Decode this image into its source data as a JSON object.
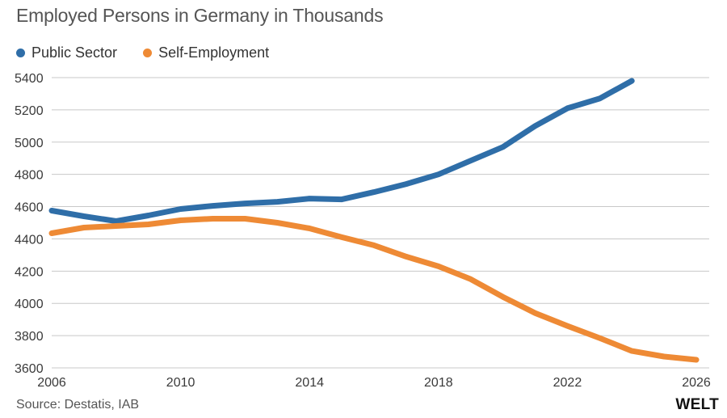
{
  "chart_data": {
    "type": "line",
    "title": "Employed Persons in Germany in Thousands",
    "xlabel": "",
    "ylabel": "",
    "x": [
      2006,
      2007,
      2008,
      2009,
      2010,
      2011,
      2012,
      2013,
      2014,
      2015,
      2016,
      2017,
      2018,
      2019,
      2020,
      2021,
      2022,
      2023,
      2024,
      2025,
      2026
    ],
    "xlim": [
      2006,
      2026.4
    ],
    "ylim": [
      3600,
      5400
    ],
    "x_ticks": [
      2006,
      2010,
      2014,
      2018,
      2022,
      2026
    ],
    "y_ticks": [
      3600,
      3800,
      4000,
      4200,
      4400,
      4600,
      4800,
      5000,
      5200,
      5400
    ],
    "grid": true,
    "legend_position": "top-left",
    "series": [
      {
        "name": "Public Sector",
        "color": "#2f6ea8",
        "x": [
          2006,
          2007,
          2008,
          2009,
          2010,
          2011,
          2012,
          2013,
          2014,
          2015,
          2016,
          2017,
          2018,
          2019,
          2020,
          2021,
          2022,
          2023,
          2024
        ],
        "values": [
          4575,
          4540,
          4510,
          4545,
          4585,
          4605,
          4620,
          4630,
          4650,
          4645,
          4690,
          4740,
          4800,
          4885,
          4970,
          5100,
          5210,
          5270,
          5380
        ]
      },
      {
        "name": "Self-Employment",
        "color": "#ee8a35",
        "x": [
          2006,
          2007,
          2008,
          2009,
          2010,
          2011,
          2012,
          2013,
          2014,
          2015,
          2016,
          2017,
          2018,
          2019,
          2020,
          2021,
          2022,
          2023,
          2024,
          2025,
          2026
        ],
        "values": [
          4435,
          4470,
          4480,
          4490,
          4515,
          4525,
          4525,
          4500,
          4465,
          4410,
          4360,
          4290,
          4230,
          4150,
          4040,
          3940,
          3860,
          3785,
          3705,
          3670,
          3650
        ]
      }
    ]
  },
  "source_text": "Source: Destatis, IAB",
  "brand_text": "WELT"
}
